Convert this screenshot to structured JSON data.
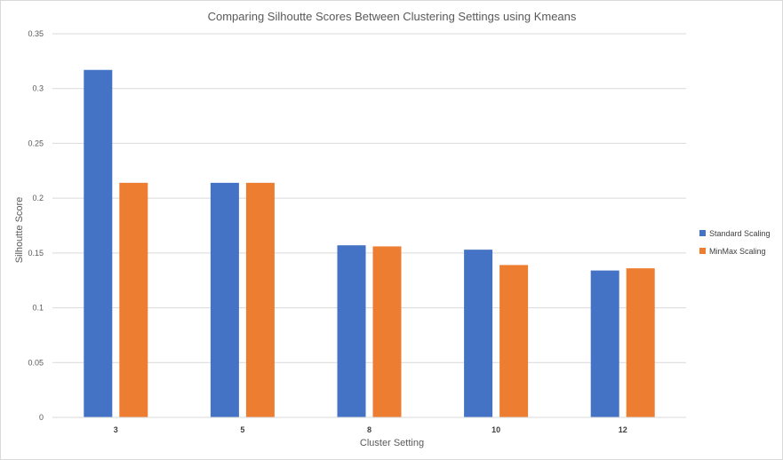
{
  "chart_data": {
    "type": "bar",
    "title": "Comparing Silhoutte Scores Between Clustering Settings using Kmeans",
    "xlabel": "Cluster Setting",
    "ylabel": "Silhoutte Score",
    "categories": [
      "3",
      "5",
      "8",
      "10",
      "12"
    ],
    "series": [
      {
        "name": "Standard Scaling",
        "color": "#4472c4",
        "values": [
          0.317,
          0.214,
          0.157,
          0.153,
          0.134
        ]
      },
      {
        "name": "MinMax Scaling",
        "color": "#ed7d31",
        "values": [
          0.214,
          0.214,
          0.156,
          0.139,
          0.136
        ]
      }
    ],
    "ylim": [
      0,
      0.35
    ],
    "yticks": [
      "0",
      "0.05",
      "0.1",
      "0.15",
      "0.2",
      "0.25",
      "0.3",
      "0.35"
    ],
    "grid": true,
    "legend": "right"
  }
}
